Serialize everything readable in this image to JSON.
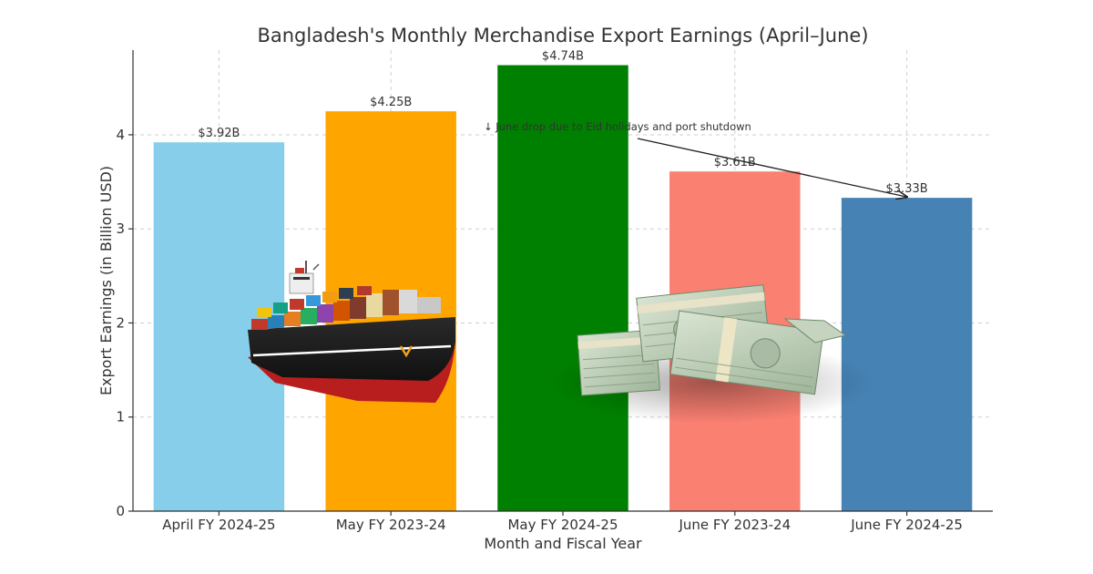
{
  "chart_data": {
    "type": "bar",
    "title": "Bangladesh's Monthly Merchandise Export Earnings (April–June)",
    "xlabel": "Month and Fiscal Year",
    "ylabel": "Export Earnings (in Billion USD)",
    "ylim": [
      0,
      4.9
    ],
    "yticks": [
      0,
      1,
      2,
      3,
      4
    ],
    "grid": true,
    "categories": [
      "April FY 2024-25",
      "May FY 2023-24",
      "May FY 2024-25",
      "June FY 2023-24",
      "June FY 2024-25"
    ],
    "values": [
      3.92,
      4.25,
      4.74,
      3.61,
      3.33
    ],
    "data_labels": [
      "$3.92B",
      "$4.25B",
      "$4.74B",
      "$3.61B",
      "$3.33B"
    ],
    "colors": [
      "#87ceeb",
      "#ffa500",
      "#008000",
      "#fa8072",
      "#4682b4"
    ],
    "annotation": {
      "text": "↓ June drop due to Eid holidays and port shutdown",
      "target_category": "June FY 2024-25",
      "target_value": 3.33
    },
    "illustrations": [
      "cargo-ship-illustration",
      "dollar-bundles-illustration"
    ]
  }
}
